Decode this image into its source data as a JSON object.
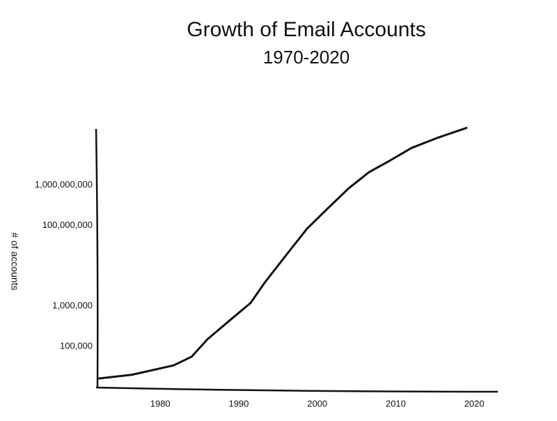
{
  "chart_data": {
    "type": "line",
    "title": "Growth of Email Accounts",
    "subtitle": "1970-2020",
    "y_label": "# of accounts",
    "log_y": true,
    "grid": false,
    "x": [
      1972,
      1976.4,
      1981.7,
      1984,
      1986,
      1989,
      1991.5,
      1993.3,
      1996,
      1998.7,
      2001.3,
      2004,
      2006.6,
      2009,
      2012,
      2015.4,
      2019
    ],
    "series": [
      {
        "name": "Email accounts",
        "color": "#111111",
        "values": [
          16000,
          20000,
          34000,
          56000,
          150000,
          470000,
          1200000,
          3800000,
          18000000,
          83000000,
          260000000,
          830000000,
          2100000000,
          3800000000,
          8300000000,
          15000000000,
          26000000000
        ]
      }
    ],
    "xlim": [
      1972,
      2023
    ],
    "xticks": [
      1980,
      1990,
      2000,
      2010,
      2020
    ],
    "ylim": [
      10000,
      30000000000
    ],
    "yticks": [
      {
        "value": 100000,
        "label": "100,000"
      },
      {
        "value": 1000000,
        "label": "1,000,000"
      },
      {
        "value": 100000000,
        "label": "100,000,000"
      },
      {
        "value": 1000000000,
        "label": "1,000,000,000"
      }
    ]
  }
}
